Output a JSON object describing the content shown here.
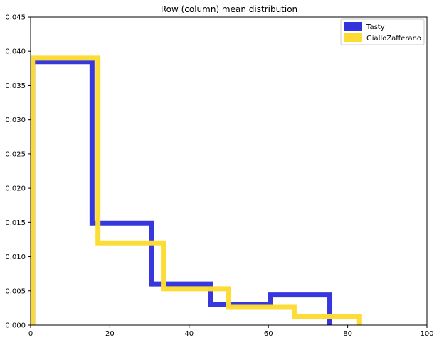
{
  "chart_data": {
    "type": "histogram",
    "histtype": "step",
    "title": "Row (column) mean distribution",
    "xlabel": "",
    "ylabel": "",
    "xlim": [
      0,
      100
    ],
    "ylim": [
      0,
      0.045
    ],
    "x_ticks": [
      0,
      20,
      40,
      60,
      80,
      100
    ],
    "y_ticks": [
      0.0,
      0.005,
      0.01,
      0.015,
      0.02,
      0.025,
      0.03,
      0.035,
      0.04,
      0.045
    ],
    "y_tick_labels": [
      "0.000",
      "0.005",
      "0.010",
      "0.015",
      "0.020",
      "0.025",
      "0.030",
      "0.035",
      "0.040",
      "0.045"
    ],
    "grid": false,
    "legend_position": "top-right",
    "series": [
      {
        "name": "Tasty",
        "color": "#3333dd",
        "bin_edges": [
          0.5,
          15.5,
          30.5,
          45.5,
          60.5,
          75.5
        ],
        "values": [
          0.0385,
          0.0149,
          0.006,
          0.003,
          0.0044
        ]
      },
      {
        "name": "GialloZafferano",
        "color": "#fcdc33",
        "bin_edges": [
          0.5,
          17,
          33.5,
          50,
          66.5,
          83
        ],
        "values": [
          0.039,
          0.012,
          0.0053,
          0.0027,
          0.0013
        ]
      }
    ]
  }
}
